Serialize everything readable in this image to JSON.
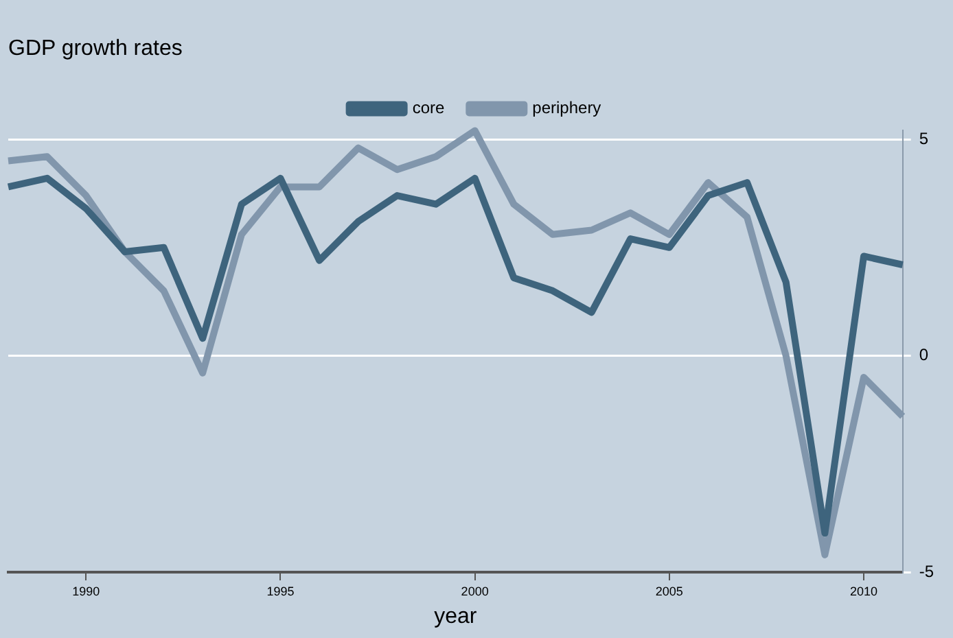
{
  "chart_data": {
    "type": "line",
    "title": "GDP growth rates",
    "xlabel": "year",
    "x": [
      1988,
      1989,
      1990,
      1991,
      1992,
      1993,
      1994,
      1995,
      1996,
      1997,
      1998,
      1999,
      2000,
      2001,
      2002,
      2003,
      2004,
      2005,
      2006,
      2007,
      2008,
      2009,
      2010,
      2011
    ],
    "series": [
      {
        "name": "core",
        "color": "#3e647d",
        "values": [
          3.9,
          4.1,
          3.4,
          2.4,
          2.5,
          0.4,
          3.5,
          4.1,
          2.2,
          3.1,
          3.7,
          3.5,
          4.1,
          1.8,
          1.5,
          1.0,
          2.7,
          2.5,
          3.7,
          4.0,
          1.7,
          -4.1,
          2.3,
          2.1
        ]
      },
      {
        "name": "periphery",
        "color": "#8196ac",
        "values": [
          4.5,
          4.6,
          3.7,
          2.4,
          1.5,
          -0.4,
          2.8,
          3.9,
          3.9,
          4.8,
          4.3,
          4.6,
          5.2,
          3.5,
          2.8,
          2.9,
          3.3,
          2.8,
          4.0,
          3.2,
          0.0,
          -4.6,
          -0.5,
          -1.4
        ]
      }
    ],
    "xlim": [
      1988,
      2011
    ],
    "xticks": [
      1990,
      1995,
      2000,
      2005,
      2010
    ],
    "ylim": [
      -5,
      5.2
    ],
    "yticks": [
      -5,
      0,
      5
    ],
    "grid": "y",
    "legend": "top",
    "marker": "none",
    "line_style": "solid"
  }
}
